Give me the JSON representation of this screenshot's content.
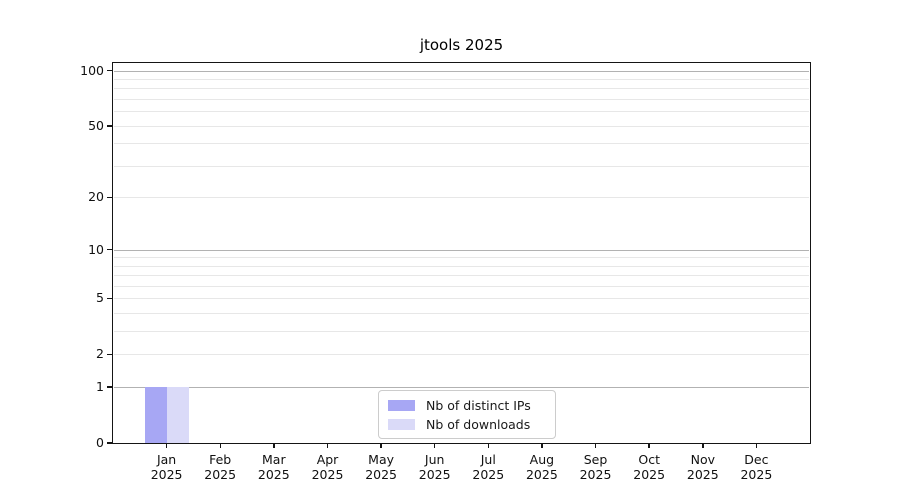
{
  "chart_data": {
    "type": "bar",
    "title": "jtools 2025",
    "x_tick_months": [
      "Jan",
      "Feb",
      "Mar",
      "Apr",
      "May",
      "Jun",
      "Jul",
      "Aug",
      "Sep",
      "Oct",
      "Nov",
      "Dec"
    ],
    "x_tick_year": "2025",
    "categories": [
      "Jan 2025",
      "Feb 2025",
      "Mar 2025",
      "Apr 2025",
      "May 2025",
      "Jun 2025",
      "Jul 2025",
      "Aug 2025",
      "Sep 2025",
      "Oct 2025",
      "Nov 2025",
      "Dec 2025"
    ],
    "series": [
      {
        "name": "Nb of distinct IPs",
        "color": "#a7a7f4",
        "values": [
          1,
          0,
          0,
          0,
          0,
          0,
          0,
          0,
          0,
          0,
          0,
          0
        ]
      },
      {
        "name": "Nb of downloads",
        "color": "#dadaf8",
        "values": [
          1,
          0,
          0,
          0,
          0,
          0,
          0,
          0,
          0,
          0,
          0,
          0
        ]
      }
    ],
    "yscale": "log1p",
    "ylim": [
      0,
      110
    ],
    "y_ticks": [
      0,
      1,
      2,
      5,
      10,
      20,
      50,
      100
    ],
    "grid": {
      "major_values": [
        1,
        10,
        100
      ],
      "minor_values": [
        2,
        3,
        4,
        5,
        6,
        7,
        8,
        9,
        20,
        30,
        40,
        50,
        60,
        70,
        80,
        90
      ],
      "major_color": "#b2b2b2",
      "minor_color": "#e7e7e7"
    },
    "legend": {
      "position": "lower center"
    }
  }
}
